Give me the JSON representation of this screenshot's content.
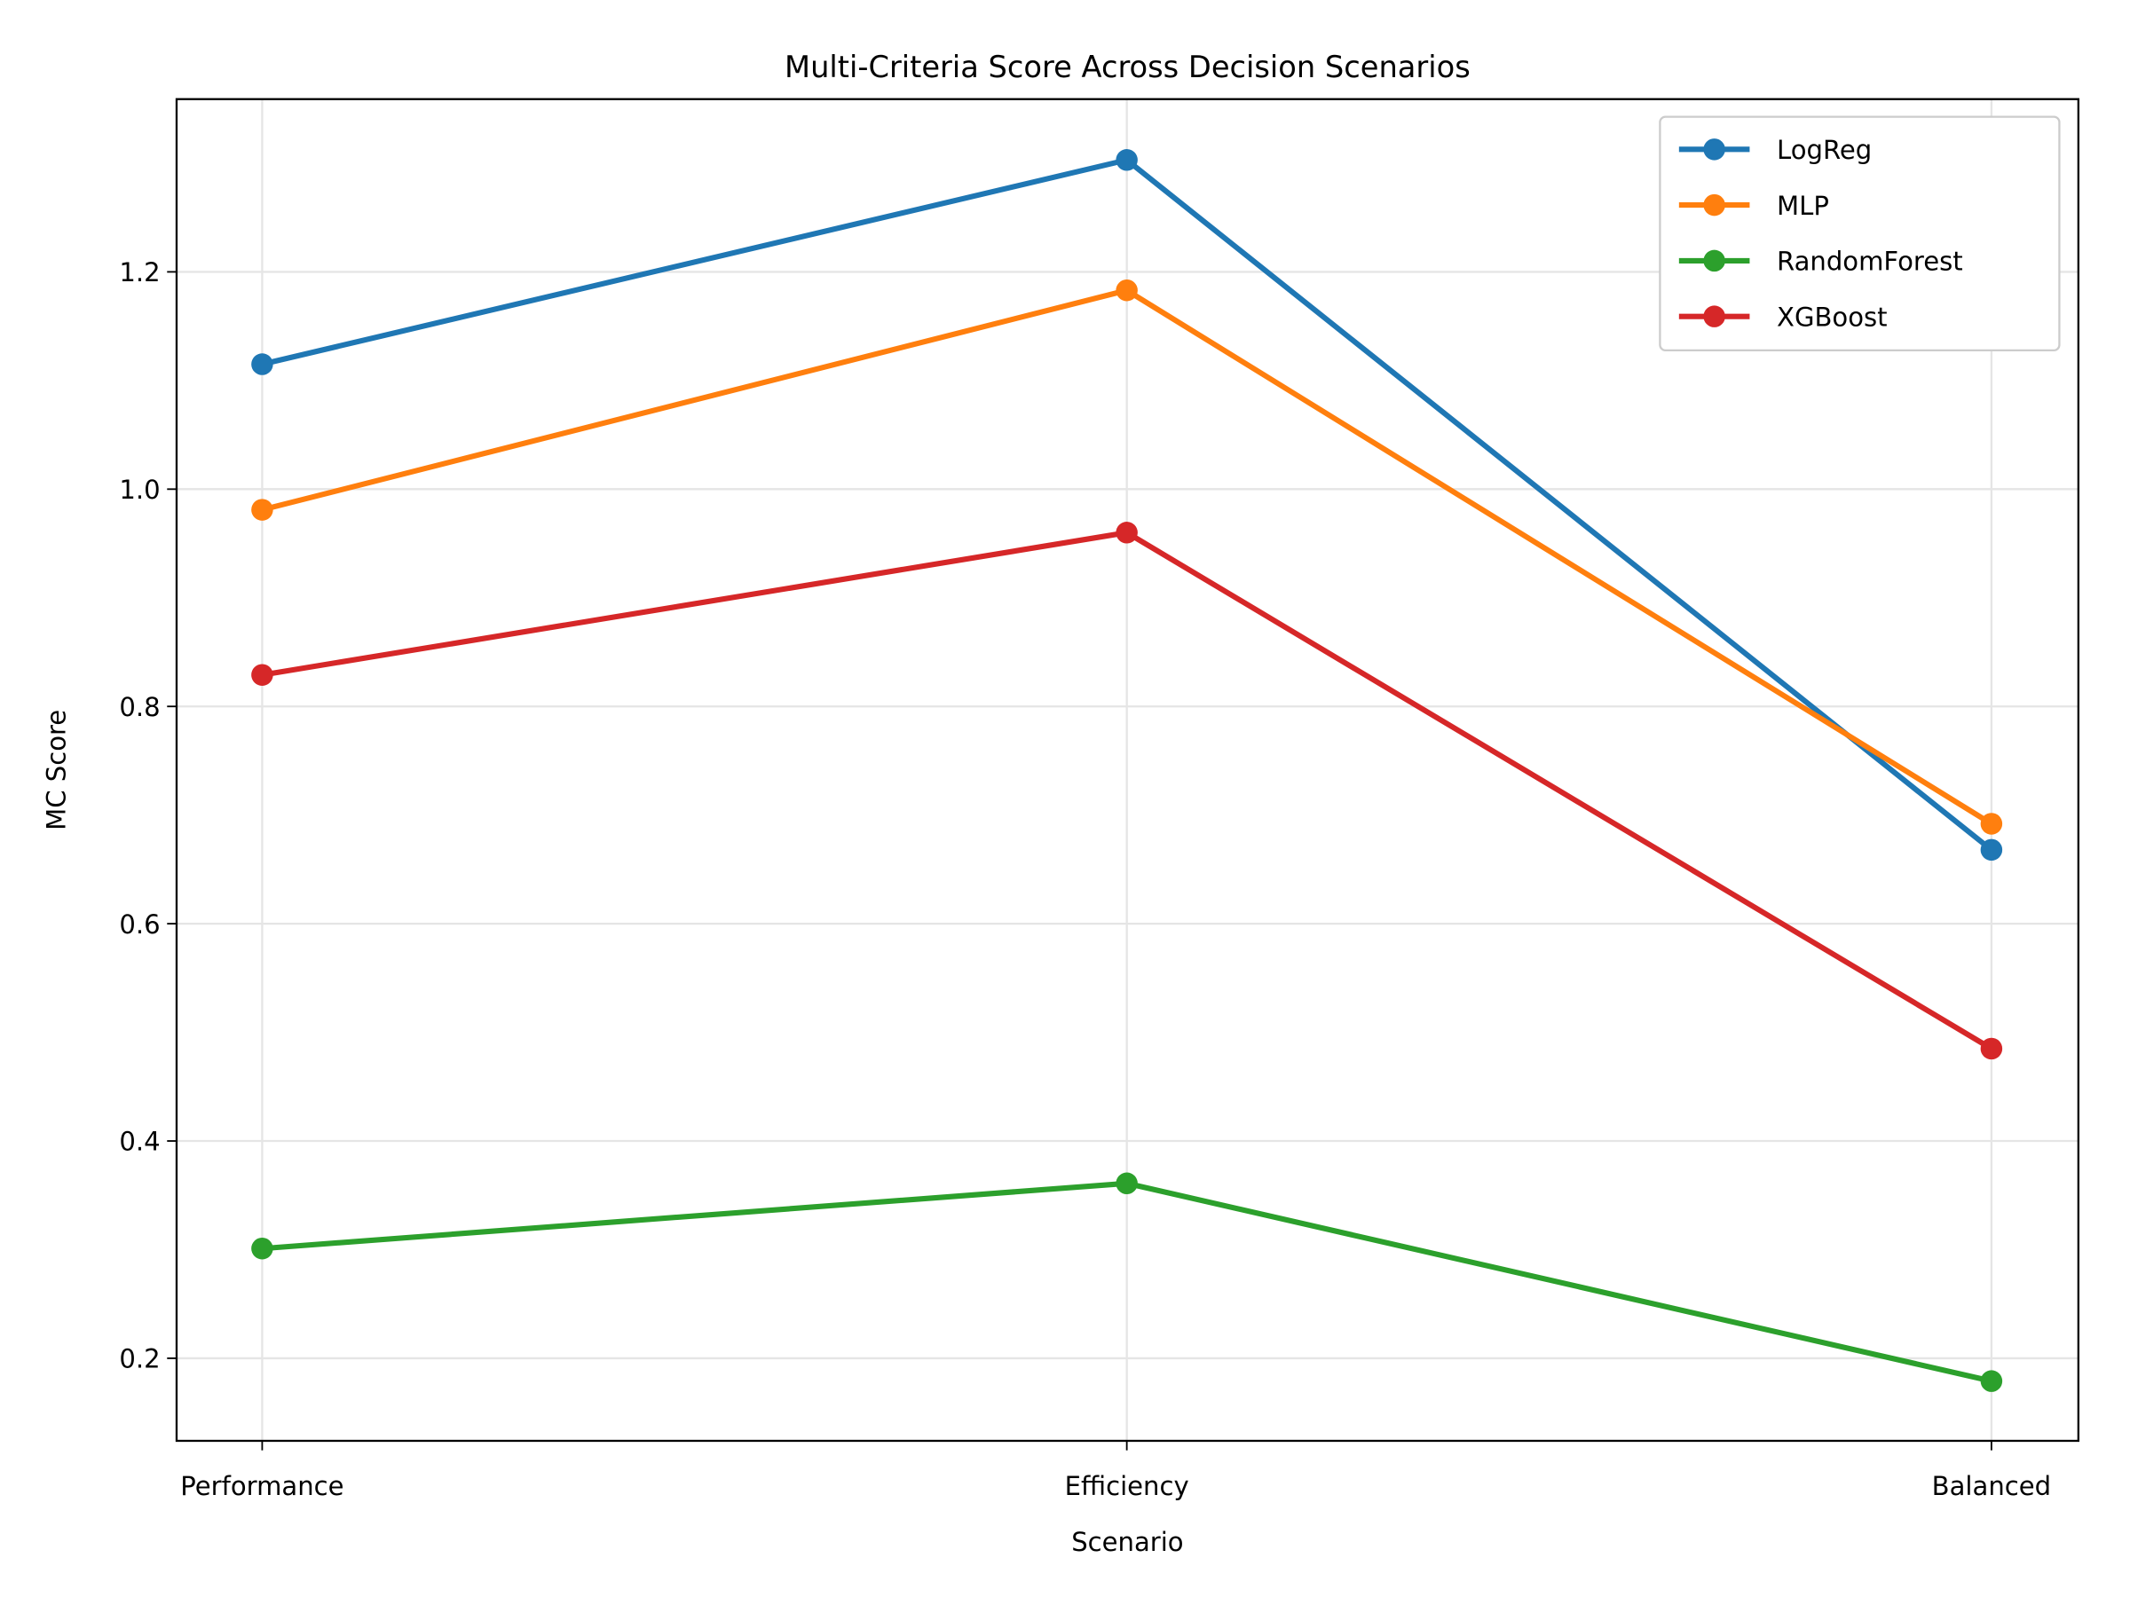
{
  "chart_data": {
    "type": "line",
    "title": "Multi-Criteria Score Across Decision Scenarios",
    "xlabel": "Scenario",
    "ylabel": "MC Score",
    "categories": [
      "Performance",
      "Efficiency",
      "Balanced"
    ],
    "ylim": [
      0.124,
      1.359
    ],
    "yticks": [
      0.2,
      0.4,
      0.6,
      0.8,
      1.0,
      1.2
    ],
    "ytick_labels": [
      "0.2",
      "0.4",
      "0.6",
      "0.8",
      "1.0",
      "1.2"
    ],
    "grid": true,
    "legend_position": "top-right",
    "series": [
      {
        "name": "LogReg",
        "color": "#1f77b4",
        "values": [
          1.115,
          1.303,
          0.668
        ]
      },
      {
        "name": "MLP",
        "color": "#ff7f0e",
        "values": [
          0.981,
          1.183,
          0.692
        ]
      },
      {
        "name": "RandomForest",
        "color": "#2ca02c",
        "values": [
          0.301,
          0.361,
          0.179
        ]
      },
      {
        "name": "XGBoost",
        "color": "#d62728",
        "values": [
          0.829,
          0.96,
          0.485
        ]
      }
    ]
  }
}
